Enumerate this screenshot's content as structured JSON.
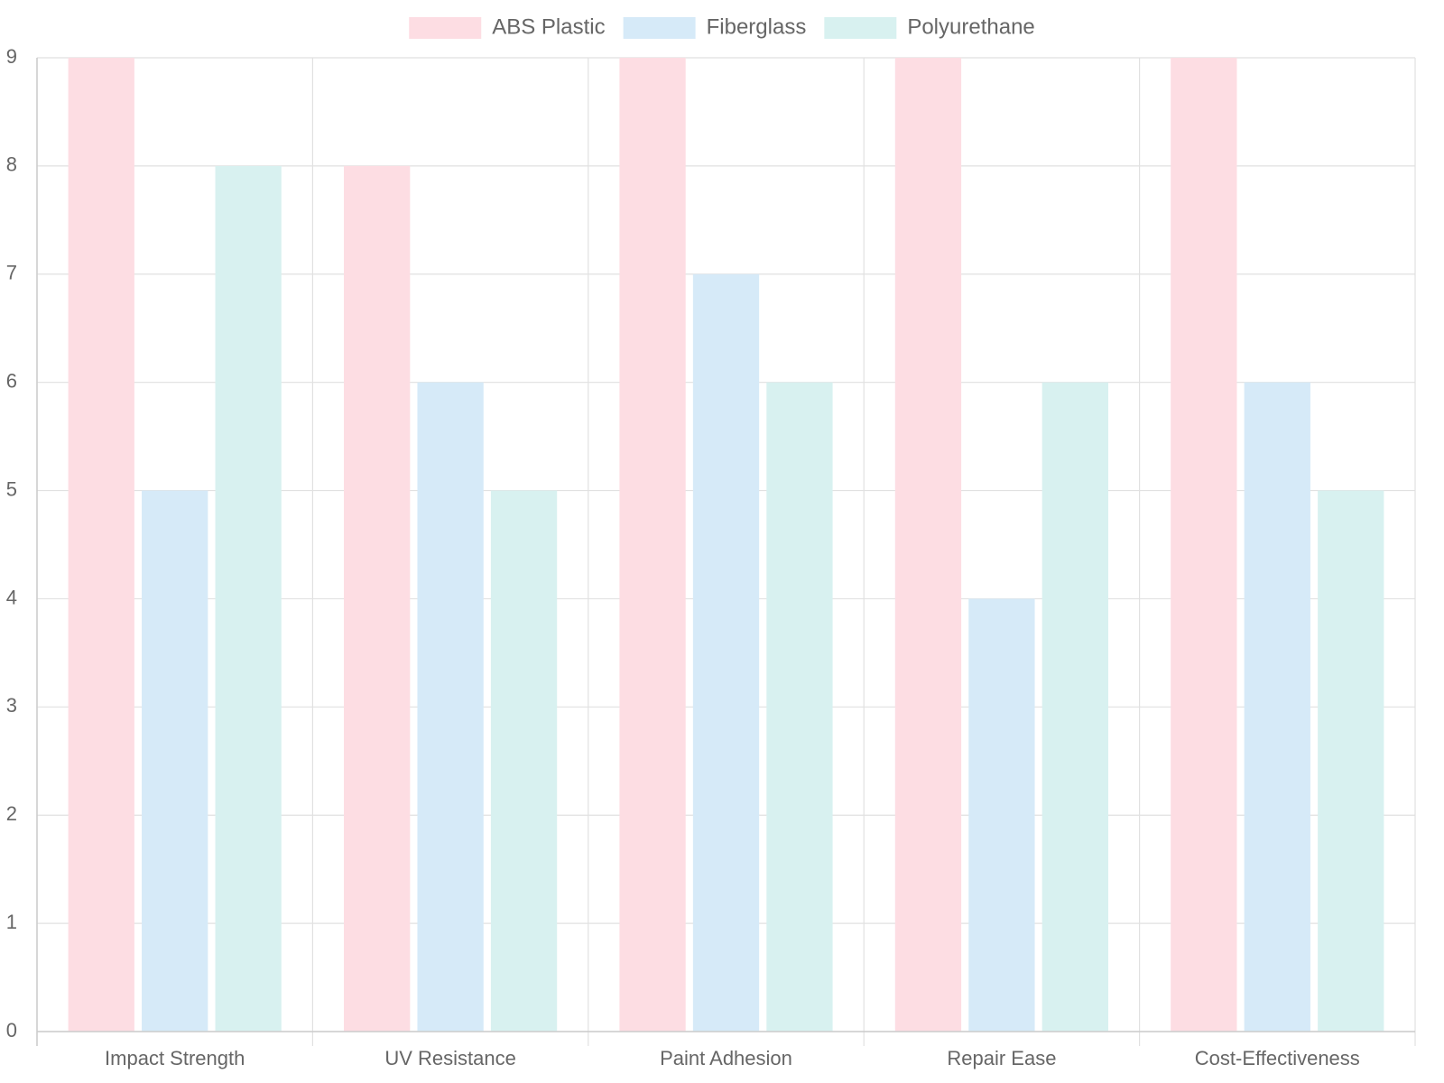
{
  "chart_data": {
    "type": "bar",
    "categories": [
      "Impact Strength",
      "UV Resistance",
      "Paint Adhesion",
      "Repair Ease",
      "Cost-Effectiveness"
    ],
    "series": [
      {
        "name": "ABS Plastic",
        "values": [
          9,
          8,
          9,
          9,
          9
        ],
        "color": "#fddde3"
      },
      {
        "name": "Fiberglass",
        "values": [
          5,
          6,
          7,
          4,
          6
        ],
        "color": "#d6eaf8"
      },
      {
        "name": "Polyurethane",
        "values": [
          8,
          5,
          6,
          6,
          5
        ],
        "color": "#d8f1f0"
      }
    ],
    "yticks": [
      0,
      1,
      2,
      3,
      4,
      5,
      6,
      7,
      8,
      9
    ],
    "ylim": [
      0,
      9
    ],
    "grid": true,
    "legend_position": "top-center",
    "gridline_color": "#e1e1e1",
    "text_color": "#666666"
  }
}
